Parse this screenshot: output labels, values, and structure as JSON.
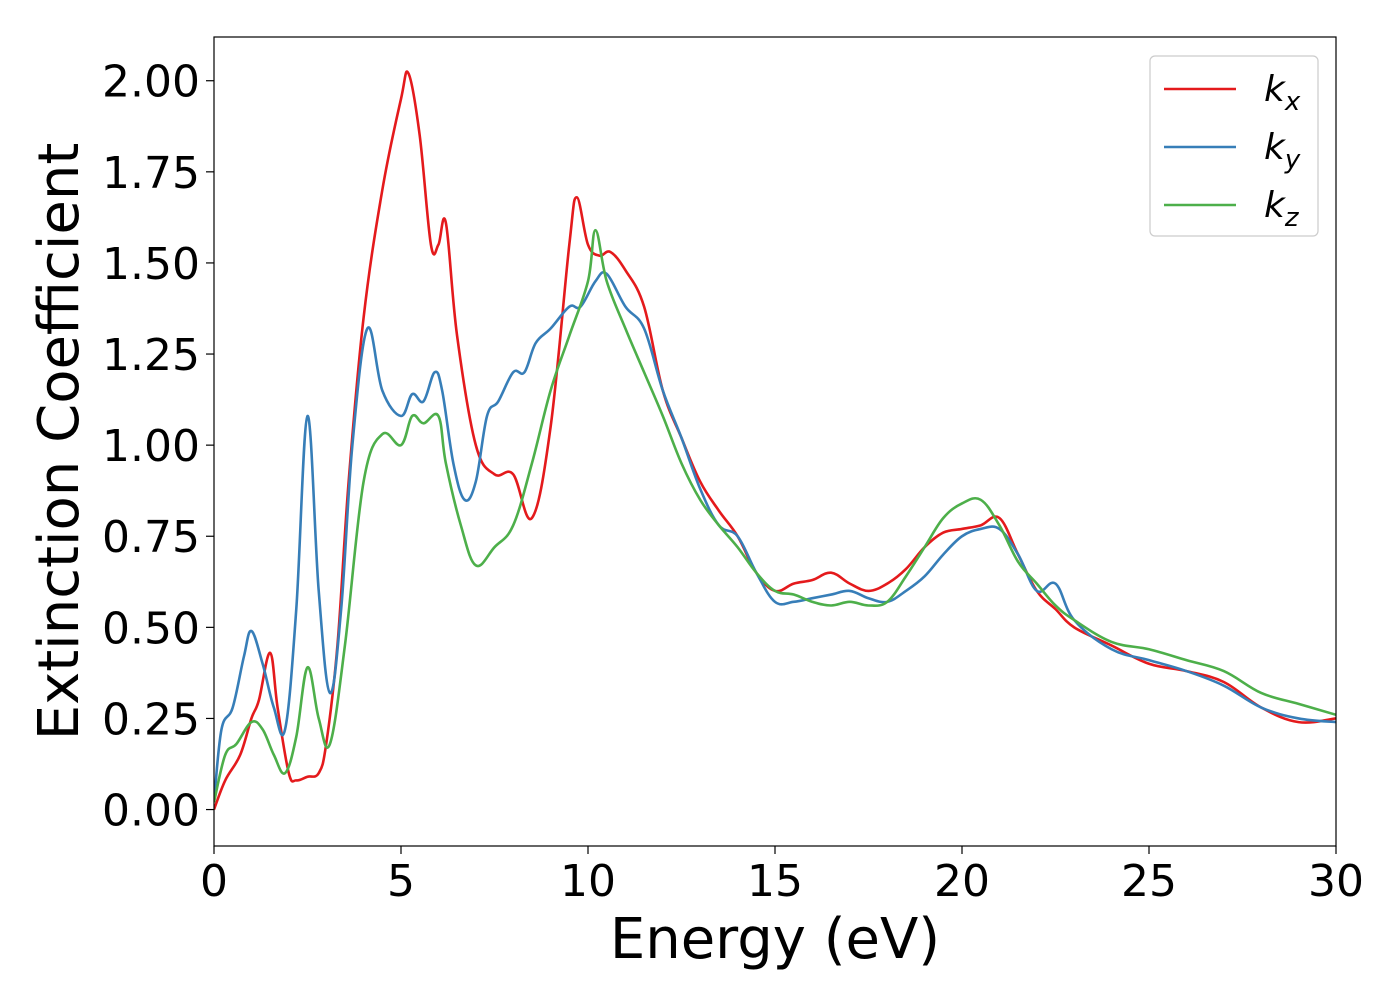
{
  "chart_data": {
    "type": "line",
    "title": "",
    "xlabel": "Energy (eV)",
    "ylabel": "Extinction Coefficient",
    "xlim": [
      0,
      30
    ],
    "ylim": [
      -0.1,
      2.12
    ],
    "xticks": [
      0,
      5,
      10,
      15,
      20,
      25,
      30
    ],
    "xtick_labels": [
      "0",
      "5",
      "10",
      "15",
      "20",
      "25",
      "30"
    ],
    "yticks": [
      0.0,
      0.25,
      0.5,
      0.75,
      1.0,
      1.25,
      1.5,
      1.75,
      2.0
    ],
    "ytick_labels": [
      "0.00",
      "0.25",
      "0.50",
      "0.75",
      "1.00",
      "1.25",
      "1.50",
      "1.75",
      "2.00"
    ],
    "grid": false,
    "legend_position": "top-right",
    "series": [
      {
        "name": "k_x",
        "name_base": "k",
        "name_sub": "x",
        "color": "#e41a1c",
        "x": [
          0,
          0.3,
          0.7,
          1.0,
          1.2,
          1.5,
          1.7,
          2.0,
          2.2,
          2.5,
          2.8,
          3.0,
          3.3,
          3.6,
          4.0,
          4.5,
          5.0,
          5.2,
          5.5,
          5.8,
          6.0,
          6.2,
          6.5,
          7.0,
          7.5,
          8.0,
          8.5,
          9.0,
          9.5,
          9.7,
          10.0,
          10.3,
          10.6,
          11.0,
          11.5,
          12.0,
          12.5,
          13.0,
          13.5,
          14.0,
          14.5,
          15.0,
          15.5,
          16.0,
          16.5,
          17.0,
          17.5,
          18.0,
          18.5,
          19.0,
          19.5,
          20.0,
          20.5,
          21.0,
          21.5,
          22.0,
          22.5,
          23.0,
          24.0,
          25.0,
          26.0,
          27.0,
          28.0,
          29.0,
          30.0
        ],
        "y": [
          0.0,
          0.08,
          0.15,
          0.25,
          0.3,
          0.43,
          0.28,
          0.1,
          0.08,
          0.09,
          0.1,
          0.18,
          0.45,
          0.9,
          1.35,
          1.7,
          1.95,
          2.02,
          1.85,
          1.55,
          1.55,
          1.61,
          1.3,
          1.0,
          0.92,
          0.92,
          0.8,
          1.05,
          1.55,
          1.68,
          1.55,
          1.52,
          1.53,
          1.48,
          1.38,
          1.15,
          1.02,
          0.9,
          0.82,
          0.75,
          0.65,
          0.6,
          0.62,
          0.63,
          0.65,
          0.62,
          0.6,
          0.62,
          0.66,
          0.72,
          0.76,
          0.77,
          0.78,
          0.8,
          0.7,
          0.6,
          0.55,
          0.5,
          0.45,
          0.4,
          0.38,
          0.35,
          0.28,
          0.24,
          0.25
        ]
      },
      {
        "name": "k_y",
        "name_base": "k",
        "name_sub": "y",
        "color": "#377eb8",
        "x": [
          0,
          0.2,
          0.5,
          0.8,
          1.0,
          1.3,
          1.6,
          1.9,
          2.2,
          2.5,
          2.8,
          3.1,
          3.4,
          3.7,
          4.1,
          4.5,
          5.0,
          5.3,
          5.6,
          5.9,
          6.1,
          6.4,
          6.7,
          7.0,
          7.3,
          7.6,
          8.0,
          8.3,
          8.6,
          9.0,
          9.5,
          9.8,
          10.2,
          10.5,
          11.0,
          11.5,
          12.0,
          12.5,
          13.0,
          13.5,
          14.0,
          14.5,
          15.0,
          15.5,
          16.0,
          16.5,
          17.0,
          17.5,
          18.0,
          18.5,
          19.0,
          19.5,
          20.0,
          20.5,
          21.0,
          21.5,
          22.0,
          22.5,
          23.0,
          24.0,
          25.0,
          26.0,
          27.0,
          28.0,
          29.0,
          30.0
        ],
        "y": [
          0.02,
          0.22,
          0.28,
          0.42,
          0.49,
          0.4,
          0.28,
          0.22,
          0.55,
          1.08,
          0.6,
          0.32,
          0.55,
          1.0,
          1.32,
          1.15,
          1.08,
          1.14,
          1.12,
          1.2,
          1.15,
          0.95,
          0.85,
          0.9,
          1.08,
          1.12,
          1.2,
          1.2,
          1.28,
          1.32,
          1.38,
          1.38,
          1.45,
          1.47,
          1.38,
          1.32,
          1.15,
          1.02,
          0.88,
          0.78,
          0.75,
          0.65,
          0.57,
          0.57,
          0.58,
          0.59,
          0.6,
          0.58,
          0.57,
          0.6,
          0.64,
          0.7,
          0.75,
          0.77,
          0.77,
          0.7,
          0.6,
          0.62,
          0.52,
          0.44,
          0.41,
          0.38,
          0.34,
          0.28,
          0.25,
          0.24
        ]
      },
      {
        "name": "k_z",
        "name_base": "k",
        "name_sub": "z",
        "color": "#4daf4a",
        "x": [
          0,
          0.3,
          0.6,
          1.0,
          1.3,
          1.6,
          1.9,
          2.2,
          2.5,
          2.8,
          3.1,
          3.5,
          4.0,
          4.5,
          5.0,
          5.3,
          5.6,
          6.0,
          6.2,
          6.6,
          7.0,
          7.5,
          8.0,
          8.5,
          9.0,
          9.5,
          10.0,
          10.2,
          10.5,
          11.0,
          11.5,
          12.0,
          12.5,
          13.0,
          13.5,
          14.0,
          14.5,
          15.0,
          15.5,
          16.0,
          16.5,
          17.0,
          17.5,
          18.0,
          18.5,
          19.0,
          19.5,
          20.0,
          20.5,
          21.0,
          21.5,
          22.0,
          22.5,
          23.0,
          24.0,
          25.0,
          26.0,
          27.0,
          28.0,
          29.0,
          30.0
        ],
        "y": [
          0.02,
          0.15,
          0.18,
          0.24,
          0.22,
          0.15,
          0.1,
          0.2,
          0.39,
          0.25,
          0.18,
          0.45,
          0.9,
          1.03,
          1.0,
          1.08,
          1.06,
          1.08,
          0.95,
          0.78,
          0.67,
          0.72,
          0.78,
          0.95,
          1.15,
          1.3,
          1.45,
          1.59,
          1.45,
          1.32,
          1.2,
          1.08,
          0.95,
          0.85,
          0.78,
          0.72,
          0.65,
          0.6,
          0.59,
          0.57,
          0.56,
          0.57,
          0.56,
          0.57,
          0.64,
          0.72,
          0.8,
          0.84,
          0.85,
          0.78,
          0.68,
          0.62,
          0.56,
          0.52,
          0.46,
          0.44,
          0.41,
          0.38,
          0.32,
          0.29,
          0.26
        ]
      }
    ]
  }
}
